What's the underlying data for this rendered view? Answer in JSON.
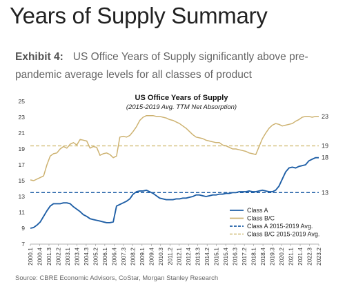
{
  "page": {
    "title": "Years of Supply Summary",
    "exhibit_label": "Exhibit 4:",
    "exhibit_caption": "US Office Years of Supply significantly above pre-pandemic average levels for all classes of product",
    "source": "Source: CBRE Economic Advisors, CoStar, Morgan Stanley Research"
  },
  "chart_data": {
    "type": "line",
    "title": "US Office Years of Supply",
    "subtitle": "(2015-2019 Avg. TTM Net Absorption)",
    "xlabel": "",
    "ylabel": "",
    "ylim": [
      7,
      25
    ],
    "yticks": [
      7,
      9,
      11,
      13,
      15,
      17,
      19,
      21,
      23,
      25
    ],
    "grid": false,
    "legend_position": "bottom-right",
    "colors": {
      "class_a": "#1f5fa6",
      "class_bc": "#cdb270",
      "class_a_avg": "#1f5fa6",
      "class_bc_avg": "#d9c88c"
    },
    "x_tick_labels": [
      "2000.1",
      "2000.4",
      "2001.3",
      "2002.2",
      "2003.1",
      "2003.4",
      "2004.3",
      "2005.2",
      "2006.1",
      "2006.4",
      "2007.3",
      "2008.2",
      "2009.1",
      "2009.4",
      "2010.3",
      "2011.2",
      "2012.1",
      "2012.4",
      "2013.3",
      "2014.2",
      "2015.1",
      "2015.4",
      "2016.3",
      "2017.2",
      "2018.1",
      "2018.4",
      "2019.3",
      "2020.2",
      "2021.1",
      "2021.4",
      "2022.3",
      "2023.2"
    ],
    "series": [
      {
        "name": "Class A",
        "style": "solid",
        "values": [
          9.0,
          9.1,
          9.4,
          9.8,
          10.5,
          11.2,
          11.8,
          12.1,
          12.1,
          12.1,
          12.2,
          12.2,
          12.1,
          11.7,
          11.4,
          11.1,
          10.7,
          10.5,
          10.2,
          10.1,
          10.0,
          9.9,
          9.8,
          9.7,
          9.7,
          9.8,
          11.8,
          12.0,
          12.2,
          12.4,
          12.7,
          13.3,
          13.6,
          13.7,
          13.7,
          13.8,
          13.6,
          13.4,
          13.1,
          12.8,
          12.7,
          12.6,
          12.6,
          12.6,
          12.7,
          12.7,
          12.8,
          12.8,
          12.9,
          13.0,
          13.2,
          13.2,
          13.1,
          13.0,
          13.1,
          13.2,
          13.2,
          13.3,
          13.3,
          13.4,
          13.4,
          13.5,
          13.5,
          13.6,
          13.6,
          13.6,
          13.7,
          13.6,
          13.6,
          13.7,
          13.8,
          13.7,
          13.6,
          13.6,
          13.8,
          14.3,
          15.2,
          16.1,
          16.6,
          16.7,
          16.6,
          16.8,
          16.9,
          17.0,
          17.5,
          17.7,
          17.9,
          17.9
        ]
      },
      {
        "name": "Class B/C",
        "style": "solid",
        "values": [
          15.1,
          15.0,
          15.2,
          15.4,
          15.6,
          17.0,
          18.1,
          18.4,
          18.5,
          19.0,
          19.3,
          19.1,
          19.6,
          19.8,
          19.5,
          20.2,
          20.1,
          20.0,
          19.1,
          19.3,
          19.2,
          18.2,
          18.4,
          18.5,
          18.3,
          17.9,
          18.1,
          20.5,
          20.6,
          20.5,
          20.7,
          21.2,
          21.8,
          22.6,
          23.0,
          23.2,
          23.2,
          23.2,
          23.1,
          23.1,
          23.0,
          22.9,
          22.7,
          22.6,
          22.4,
          22.2,
          21.9,
          21.6,
          21.2,
          20.8,
          20.5,
          20.4,
          20.3,
          20.1,
          20.0,
          19.9,
          19.8,
          19.8,
          19.5,
          19.4,
          19.2,
          19.0,
          19.0,
          18.9,
          18.8,
          18.7,
          18.5,
          18.4,
          18.3,
          19.3,
          20.3,
          21.0,
          21.6,
          22.0,
          22.2,
          22.1,
          21.9,
          22.0,
          22.1,
          22.2,
          22.5,
          22.7,
          23.0,
          23.1,
          23.1,
          23.0,
          23.1,
          23.1
        ]
      },
      {
        "name": "Class A 2015-2019 Avg.",
        "style": "dashed",
        "constant": 13.5
      },
      {
        "name": "Class B/C 2015-2019 Avg.",
        "style": "dashed",
        "constant": 19.4
      }
    ],
    "end_labels": [
      "23",
      "19",
      "18",
      "13"
    ]
  }
}
